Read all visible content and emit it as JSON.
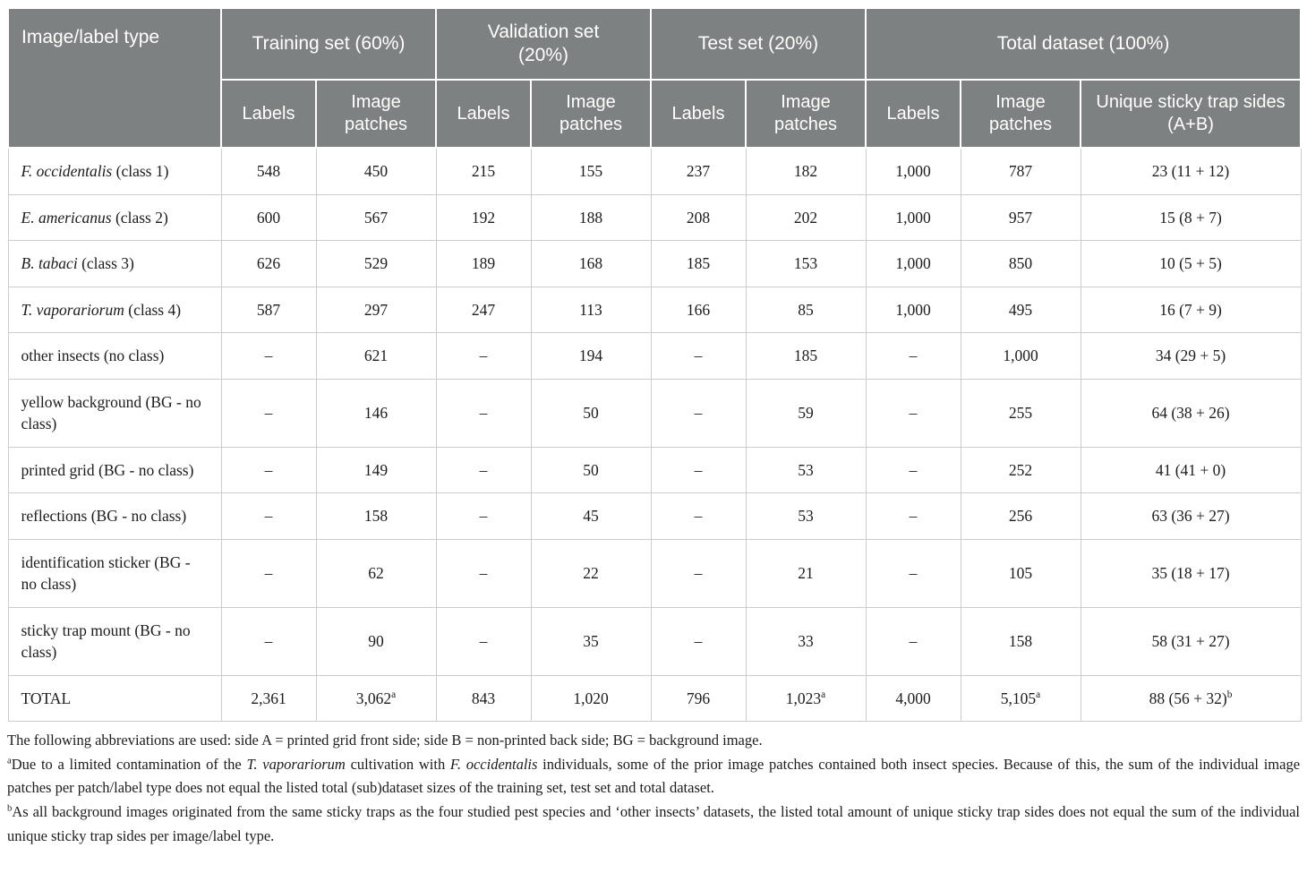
{
  "colors": {
    "header_bg": "#7e8181",
    "header_text": "#ffffff",
    "body_border": "#cccccc"
  },
  "table": {
    "corner_header": "Image/label type",
    "groups": [
      "Training set (60%)",
      "Validation set (20%)",
      "Test set (20%)",
      "Total dataset (100%)"
    ],
    "sub_headers": [
      "Labels",
      "Image patches",
      "Labels",
      "Image patches",
      "Labels",
      "Image patches",
      "Labels",
      "Image patches",
      "Unique sticky trap sides (A+B)"
    ],
    "rows": [
      {
        "label_i": "F. occidentalis",
        "label_r": " (class 1)",
        "values": [
          "548",
          "450",
          "215",
          "155",
          "237",
          "182",
          "1,000",
          "787",
          "23 (11 + 12)"
        ]
      },
      {
        "label_i": "E. americanus",
        "label_r": " (class 2)",
        "values": [
          "600",
          "567",
          "192",
          "188",
          "208",
          "202",
          "1,000",
          "957",
          "15 (8 + 7)"
        ]
      },
      {
        "label_i": "B. tabaci",
        "label_r": " (class 3)",
        "values": [
          "626",
          "529",
          "189",
          "168",
          "185",
          "153",
          "1,000",
          "850",
          "10 (5 + 5)"
        ]
      },
      {
        "label_i": "T. vaporariorum",
        "label_r": " (class 4)",
        "values": [
          "587",
          "297",
          "247",
          "113",
          "166",
          "85",
          "1,000",
          "495",
          "16 (7 + 9)"
        ]
      },
      {
        "label_i": "",
        "label_r": "other insects (no class)",
        "values": [
          "–",
          "621",
          "–",
          "194",
          "–",
          "185",
          "–",
          "1,000",
          "34 (29 + 5)"
        ]
      },
      {
        "label_i": "",
        "label_r": "yellow background (BG - no class)",
        "values": [
          "–",
          "146",
          "–",
          "50",
          "–",
          "59",
          "–",
          "255",
          "64 (38 + 26)"
        ]
      },
      {
        "label_i": "",
        "label_r": "printed grid (BG - no class)",
        "values": [
          "–",
          "149",
          "–",
          "50",
          "–",
          "53",
          "–",
          "252",
          "41 (41 + 0)"
        ]
      },
      {
        "label_i": "",
        "label_r": "reflections (BG - no class)",
        "values": [
          "–",
          "158",
          "–",
          "45",
          "–",
          "53",
          "–",
          "256",
          "63 (36 + 27)"
        ]
      },
      {
        "label_i": "",
        "label_r": "identification sticker (BG - no class)",
        "values": [
          "–",
          "62",
          "–",
          "22",
          "–",
          "21",
          "–",
          "105",
          "35 (18 + 17)"
        ]
      },
      {
        "label_i": "",
        "label_r": "sticky trap mount (BG - no class)",
        "values": [
          "–",
          "90",
          "–",
          "35",
          "–",
          "33",
          "–",
          "158",
          "58 (31 + 27)"
        ]
      },
      {
        "label_i": "",
        "label_r": "TOTAL",
        "total": true,
        "values": [
          "2,361",
          "3,062^a",
          "843",
          "1,020",
          "796",
          "1,023^a",
          "4,000",
          "5,105^a",
          "88 (56 + 32)^b"
        ]
      }
    ]
  },
  "footnotes": [
    {
      "sup": "",
      "text": "The following abbreviations are used: side A = printed grid front side; side B = non-printed back side; BG = background image."
    },
    {
      "sup": "a",
      "text": "Due to a limited contamination of the *T. vaporariorum* cultivation with *F. occidentalis* individuals, some of the prior image patches contained both insect species. Because of this, the sum of the individual image patches per patch/label type does not equal the listed total (sub)dataset sizes of the training set, test set and total dataset."
    },
    {
      "sup": "b",
      "text": "As all background images originated from the same sticky traps as the four studied pest species and ‘other insects’ datasets, the listed total amount of unique sticky trap sides does not equal the sum of the individual unique sticky trap sides per image/label type."
    }
  ]
}
